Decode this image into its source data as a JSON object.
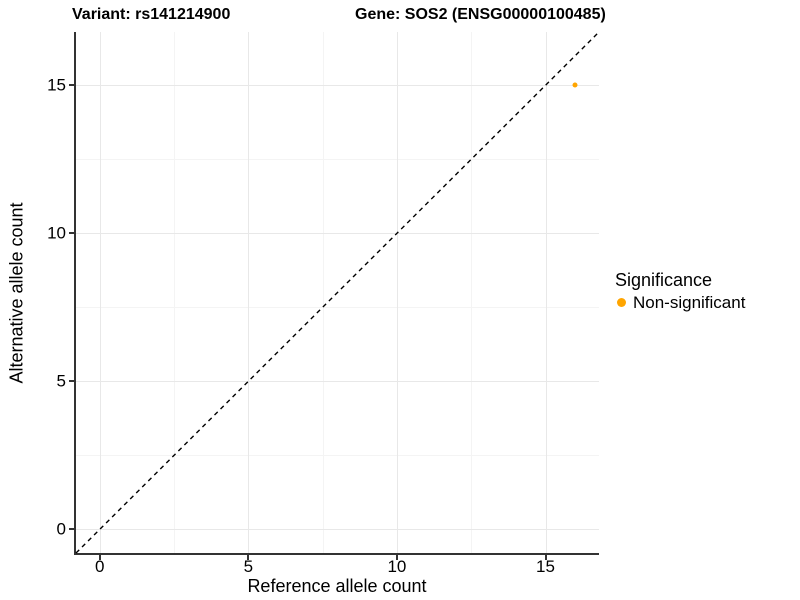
{
  "title": {
    "variant": "Variant: rs141214900",
    "gene": "Gene: SOS2 (ENSG00000100485)"
  },
  "chart_data": {
    "type": "scatter",
    "title": "Variant: rs141214900 / Gene: SOS2 (ENSG00000100485)",
    "xlabel": "Reference allele count",
    "ylabel": "Alternative allele count",
    "xlim": [
      -0.8,
      16.8
    ],
    "ylim": [
      -0.8,
      16.8
    ],
    "xticks": [
      0,
      5,
      10,
      15
    ],
    "yticks": [
      0,
      5,
      10,
      15
    ],
    "xticks_minor": [
      2.5,
      7.5,
      12.5
    ],
    "yticks_minor": [
      2.5,
      7.5,
      12.5
    ],
    "grid": "major and minor gridlines on white panel",
    "reference_line": {
      "kind": "identity y = x",
      "style": "dashed",
      "color": "#000000"
    },
    "series": [
      {
        "name": "Non-significant",
        "color": "#FFA500",
        "points": [
          {
            "x": 16,
            "y": 15
          }
        ]
      }
    ],
    "legend": {
      "title": "Significance",
      "position": "right",
      "entries": [
        {
          "label": "Non-significant",
          "color": "#FFA500"
        }
      ]
    }
  }
}
